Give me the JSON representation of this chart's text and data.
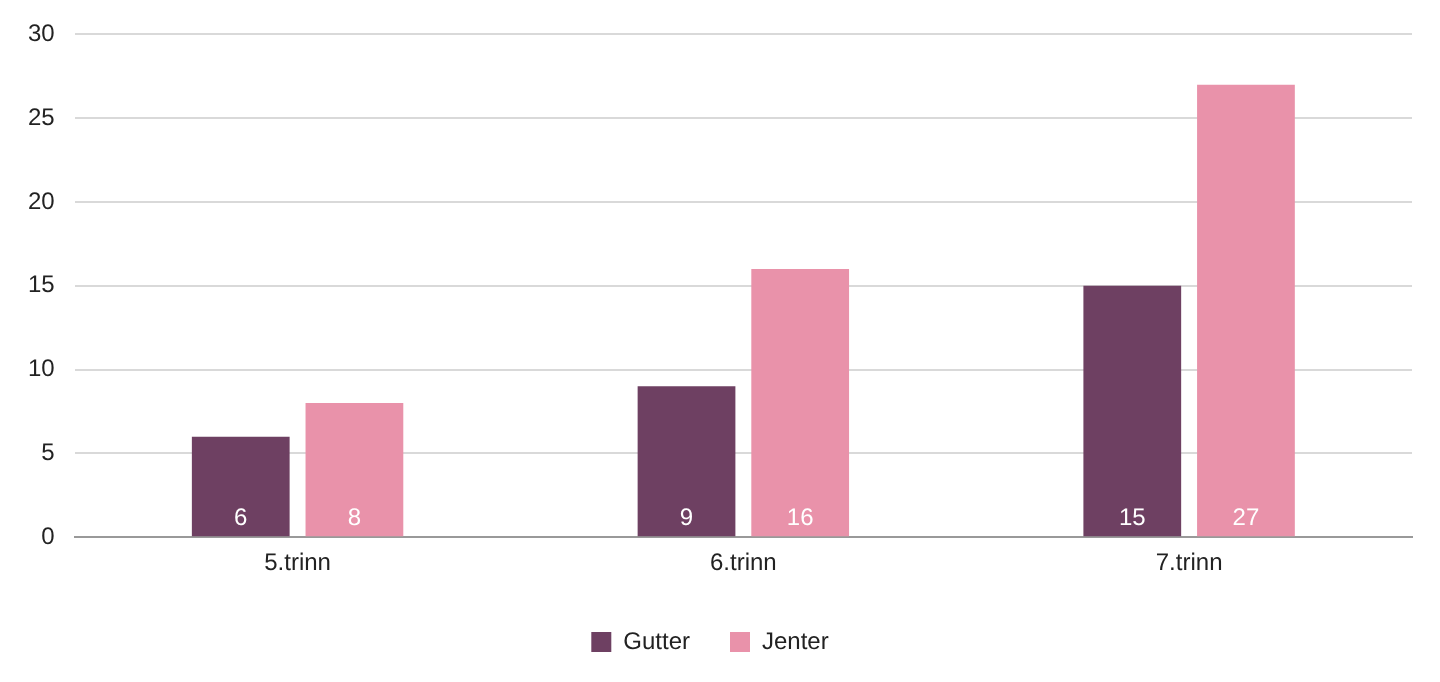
{
  "chart_data": {
    "type": "bar",
    "categories": [
      "5.trinn",
      "6.trinn",
      "7.trinn"
    ],
    "series": [
      {
        "name": "Gutter",
        "color": "#6e4062",
        "values": [
          6,
          9,
          15
        ]
      },
      {
        "name": "Jenter",
        "color": "#e992aa",
        "values": [
          8,
          16,
          27
        ]
      }
    ],
    "ylim": [
      0,
      30
    ],
    "yticks": [
      0,
      5,
      10,
      15,
      20,
      25,
      30
    ],
    "grid": "y",
    "legend": "bottom",
    "data_labels": true
  }
}
